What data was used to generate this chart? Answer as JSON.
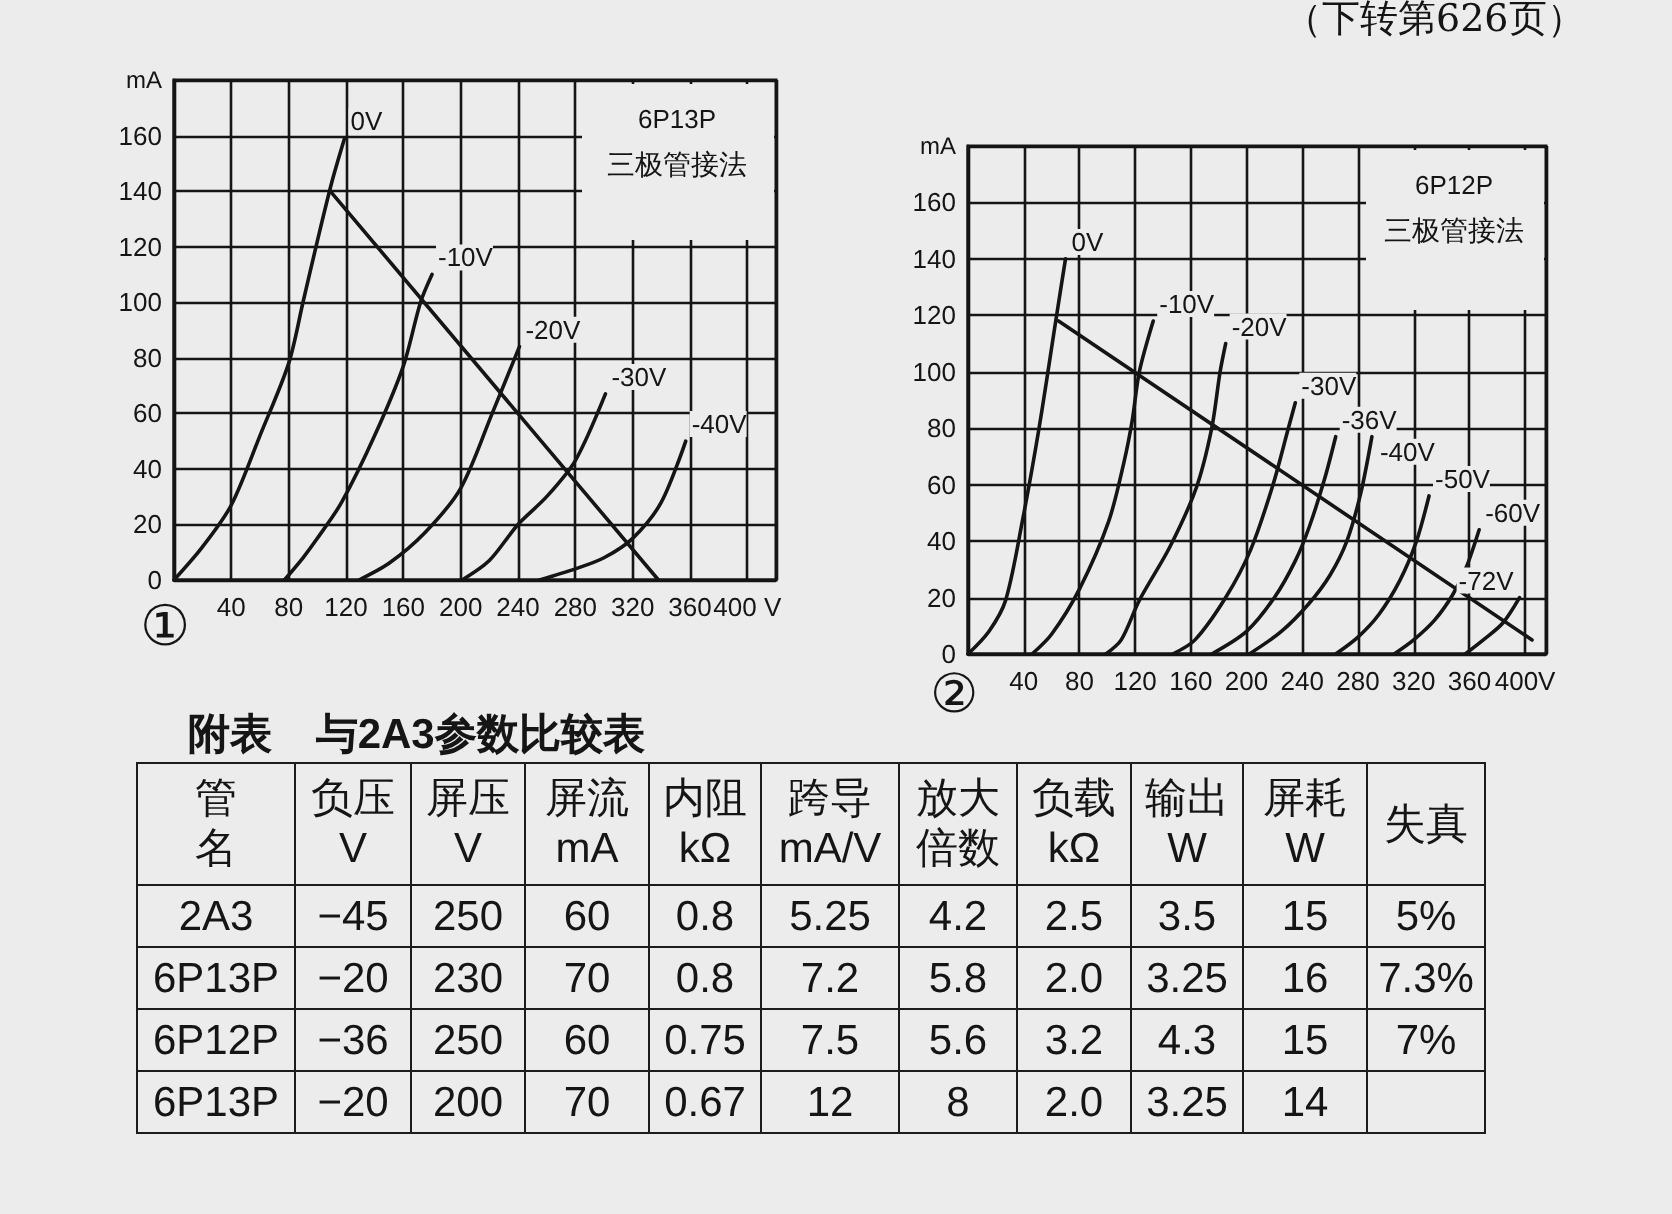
{
  "chart_data": [
    {
      "type": "line",
      "title": "6P13P",
      "subtitle": "三极管接法",
      "ylabel": "mA",
      "xlim": [
        0,
        420
      ],
      "xticks": [
        40,
        80,
        120,
        160,
        200,
        240,
        280,
        320,
        360,
        {
          "value": 400,
          "label": "400 V"
        }
      ],
      "ylim": [
        0,
        180
      ],
      "yticks": [
        0,
        20,
        40,
        60,
        80,
        100,
        120,
        140,
        160
      ],
      "grid": true,
      "marker": "none",
      "line_style": "solid",
      "annotations": [
        "①"
      ],
      "series": [
        {
          "name": "0V",
          "color": "#151515",
          "x": [
            0,
            20,
            40,
            60,
            80,
            90,
            100,
            110,
            119
          ],
          "values": [
            0,
            12,
            27,
            52,
            78,
            100,
            122,
            143,
            159
          ]
        },
        {
          "name": "-10V",
          "color": "#151515",
          "x": [
            77,
            90,
            100,
            117,
            140,
            160,
            172,
            180
          ],
          "values": [
            0,
            8,
            15,
            28,
            52,
            77,
            100,
            110
          ]
        },
        {
          "name": "-20V",
          "color": "#151515",
          "x": [
            129,
            150,
            175,
            200,
            222,
            241
          ],
          "values": [
            0,
            6,
            17,
            33,
            60,
            84
          ]
        },
        {
          "name": "-30V",
          "color": "#151515",
          "x": [
            201,
            220,
            240,
            260,
            280,
            301
          ],
          "values": [
            0,
            7,
            20,
            30,
            43,
            67
          ]
        },
        {
          "name": "-40V",
          "color": "#151515",
          "x": [
            255,
            280,
            300,
            320,
            340,
            357
          ],
          "values": [
            0,
            4,
            8,
            15,
            28,
            50
          ]
        },
        {
          "color": "#151515",
          "x": [
            109,
            338
          ],
          "values": [
            140,
            0
          ]
        }
      ]
    },
    {
      "type": "line",
      "title": "6P12P",
      "subtitle": "三极管接法",
      "ylabel": "mA",
      "xlim": [
        0,
        415
      ],
      "xticks": [
        40,
        80,
        120,
        160,
        200,
        240,
        280,
        320,
        360,
        {
          "value": 400,
          "label": "400V"
        }
      ],
      "ylim": [
        0,
        180
      ],
      "yticks": [
        0,
        20,
        40,
        60,
        80,
        100,
        120,
        140,
        160
      ],
      "grid": true,
      "marker": "none",
      "line_style": "solid",
      "annotations": [
        "②",
        "（下转第626页）"
      ],
      "series": [
        {
          "name": "0V",
          "color": "#151515",
          "x": [
            0,
            15,
            27,
            39,
            51,
            63,
            70
          ],
          "values": [
            0,
            8,
            19,
            47,
            80,
            118,
            140
          ]
        },
        {
          "name": "-10V",
          "color": "#151515",
          "x": [
            46,
            60,
            80,
            101,
            112,
            118,
            123,
            133
          ],
          "values": [
            0,
            7,
            23,
            47,
            68,
            83,
            100,
            118
          ]
        },
        {
          "name": "-20V",
          "color": "#151515",
          "x": [
            99,
            110,
            123,
            145,
            164,
            175,
            181,
            185
          ],
          "values": [
            0,
            5,
            19,
            38,
            59,
            80,
            100,
            110
          ]
        },
        {
          "name": "-30V",
          "color": "#151515",
          "x": [
            147,
            163,
            185,
            203,
            219,
            230,
            235
          ],
          "values": [
            0,
            5,
            20,
            37,
            60,
            80,
            89
          ]
        },
        {
          "name": "-36V",
          "color": "#151515",
          "x": [
            175,
            200,
            220,
            235,
            245,
            256,
            264
          ],
          "values": [
            0,
            8,
            20,
            33,
            45,
            62,
            77
          ]
        },
        {
          "name": "-40V",
          "color": "#151515",
          "x": [
            202,
            225,
            245,
            260,
            272,
            282,
            290
          ],
          "values": [
            0,
            8,
            18,
            28,
            40,
            57,
            77
          ]
        },
        {
          "name": "-50V",
          "color": "#151515",
          "x": [
            264,
            280,
            295,
            310,
            322,
            331
          ],
          "values": [
            0,
            6,
            14,
            26,
            40,
            56
          ]
        },
        {
          "name": "-60V",
          "color": "#151515",
          "x": [
            306,
            320,
            335,
            348,
            358,
            367
          ],
          "values": [
            0,
            5,
            12,
            21,
            31,
            44
          ]
        },
        {
          "name": "-72V",
          "color": "#151515",
          "x": [
            357,
            370,
            384,
            396
          ],
          "values": [
            0,
            5,
            11,
            20
          ]
        },
        {
          "color": "#151515",
          "x": [
            65,
            405
          ],
          "values": [
            118,
            5
          ]
        }
      ]
    },
    {
      "type": "other",
      "title": "附表 与2A3参数比较表",
      "categories": [
        "管名",
        "负压\nV",
        "屏压\nV",
        "屏流\nmA",
        "内阻\nkΩ",
        "跨导\nmA/V",
        "放大倍数",
        "负载\nkΩ",
        "输出\nW",
        "屏耗\nW",
        "失真"
      ],
      "cell_labels": [
        [
          "2A3",
          "−45",
          "250",
          "60",
          "0.8",
          "5.25",
          "4.2",
          "2.5",
          "3.5",
          "15",
          "5%"
        ],
        [
          "6P13P",
          "−20",
          "230",
          "70",
          "0.8",
          "7.2",
          "5.8",
          "2.0",
          "3.25",
          "16",
          "7.3%"
        ],
        [
          "6P12P",
          "−36",
          "250",
          "60",
          "0.75",
          "7.5",
          "5.6",
          "3.2",
          "4.3",
          "15",
          "7%"
        ],
        [
          "6P13P",
          "−20",
          "200",
          "70",
          "0.67",
          "12",
          "8",
          "2.0",
          "3.25",
          "14",
          null
        ]
      ]
    }
  ]
}
